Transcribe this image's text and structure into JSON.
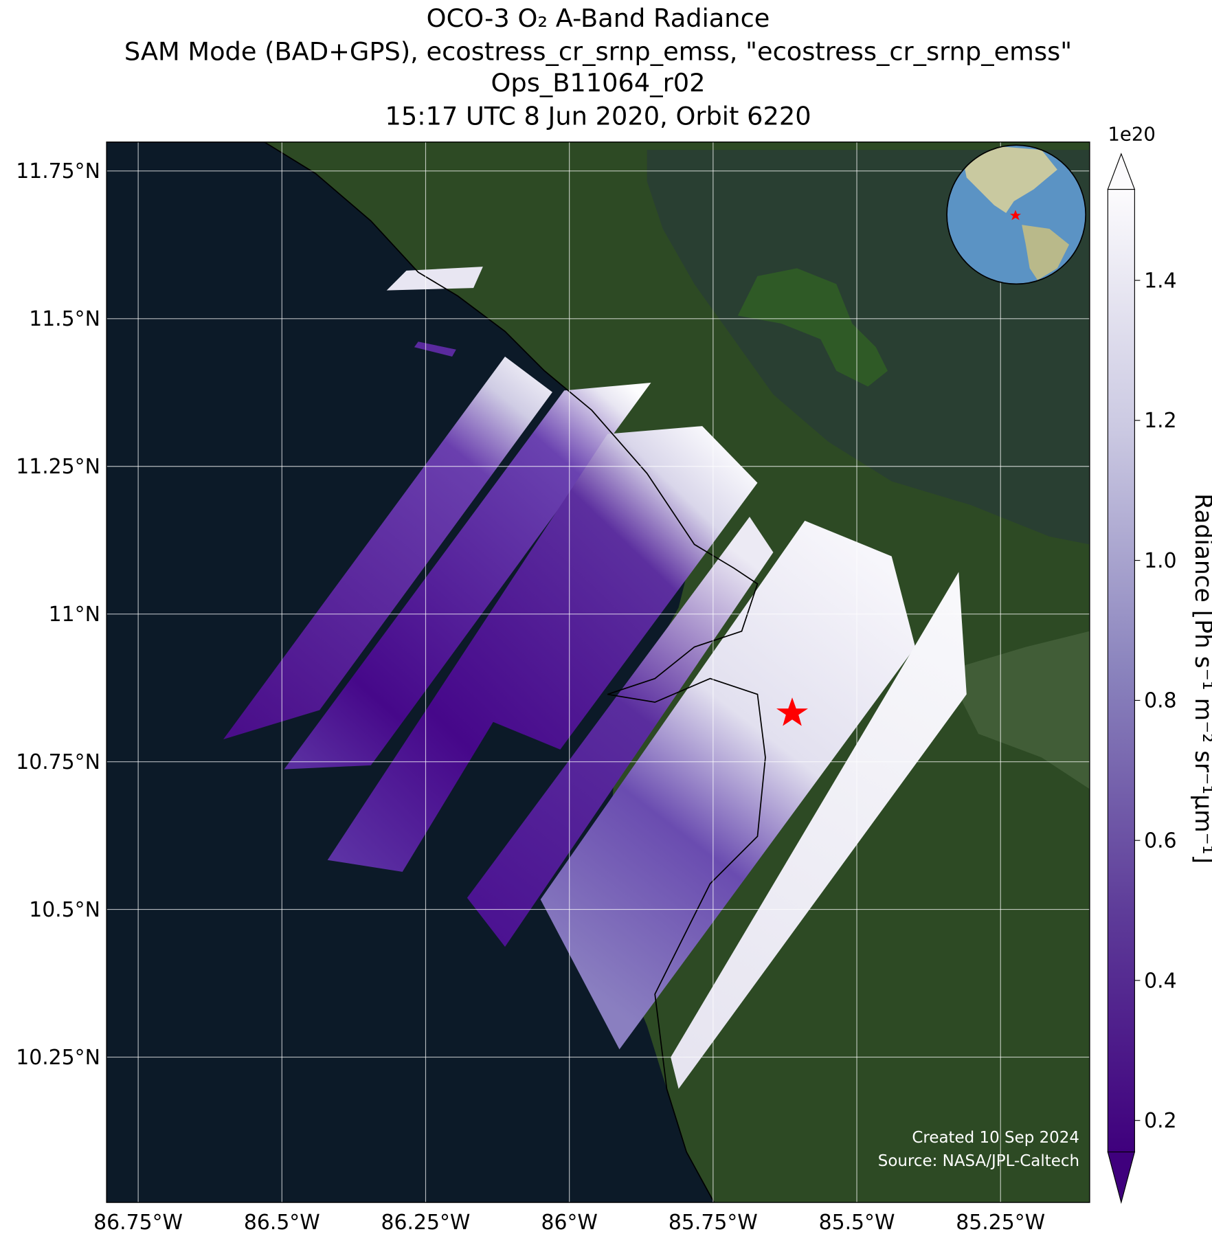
{
  "title": [
    "OCO-3 O₂ A-Band Radiance",
    "SAM Mode (BAD+GPS), ecostress_cr_srnp_emss, \"ecostress_cr_srnp_emss\"",
    "Ops_B11064_r02",
    "15:17 UTC 8 Jun 2020, Orbit 6220"
  ],
  "map": {
    "xlim": [
      -86.805,
      -85.095
    ],
    "ylim": [
      10.004,
      11.799
    ],
    "xticks": [
      {
        "value": -86.75,
        "label": "86.75°W"
      },
      {
        "value": -86.5,
        "label": "86.5°W"
      },
      {
        "value": -86.25,
        "label": "86.25°W"
      },
      {
        "value": -86,
        "label": "86°W"
      },
      {
        "value": -85.75,
        "label": "85.75°W"
      },
      {
        "value": -85.5,
        "label": "85.5°W"
      },
      {
        "value": -85.25,
        "label": "85.25°W"
      }
    ],
    "yticks": [
      {
        "value": 10.25,
        "label": "10.25°N"
      },
      {
        "value": 10.5,
        "label": "10.5°N"
      },
      {
        "value": 10.75,
        "label": "10.75°N"
      },
      {
        "value": 11,
        "label": "11°N"
      },
      {
        "value": 11.25,
        "label": "11.25°N"
      },
      {
        "value": 11.5,
        "label": "11.5°N"
      },
      {
        "value": 11.75,
        "label": "11.75°N"
      }
    ],
    "grid": true
  },
  "colorbar": {
    "label": "Radiance [Ph s⁻¹ m⁻² sr⁻¹μm⁻¹]",
    "multiplier": "1e20",
    "lim": [
      0.155,
      1.53
    ],
    "ticks": [
      0.2,
      0.4,
      0.6,
      0.8,
      {
        "value": 1,
        "label": "1.0"
      },
      1.2,
      1.4
    ]
  },
  "credits": [
    "Created 10 Sep 2024",
    "Source: NASA/JPL-Caltech"
  ]
}
